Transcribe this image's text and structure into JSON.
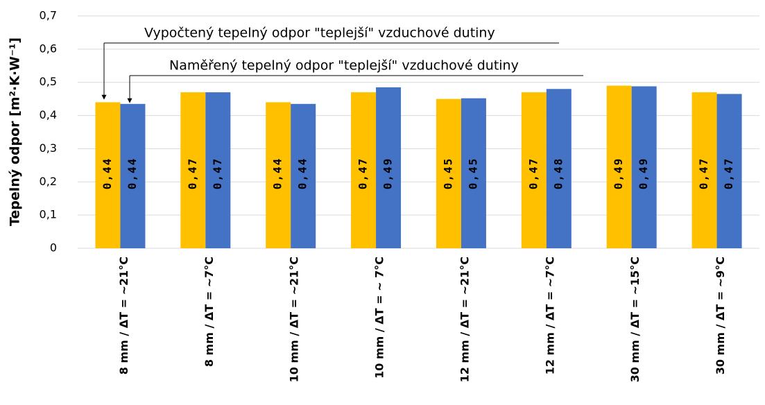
{
  "chart_data": {
    "type": "bar",
    "y_label": "Tepelný odpor [m²·K·W⁻¹]",
    "categories": [
      "8 mm / ΔT = ~21°C",
      "8 mm / ΔT = ~7°C",
      "10 mm / ΔT = ~21°C",
      "10 mm / ΔT = ~ 7°C",
      "12 mm / ΔT = ~21°C",
      "12 mm / ΔT = ~7°C",
      "30 mm / ΔT = ~15°C",
      "30 mm / ΔT = ~9°C"
    ],
    "series": [
      {
        "color": "#ffc000",
        "values": [
          0.44,
          0.47,
          0.44,
          0.47,
          0.45,
          0.47,
          0.49,
          0.47
        ],
        "value_labels": [
          "0,44",
          "0,47",
          "0,44",
          "0,47",
          "0,45",
          "0,47",
          "0,49",
          "0,47"
        ]
      },
      {
        "color": "#4472c4",
        "values": [
          0.435,
          0.47,
          0.435,
          0.485,
          0.452,
          0.48,
          0.488,
          0.465
        ],
        "value_labels": [
          "0,44",
          "0,47",
          "0,44",
          "0,49",
          "0,45",
          "0,48",
          "0,49",
          "0,47"
        ]
      }
    ],
    "annotations": [
      {
        "text": "Vypočtený tepelný odpor \"teplejší\" vzduchové dutiny"
      },
      {
        "text": "Naměřený tepelný odpor \"teplejší\" vzduchové dutiny"
      }
    ],
    "ylim": [
      0,
      0.7
    ],
    "yticks": [
      0,
      {
        "value": 0.1,
        "label": "0,1"
      },
      {
        "value": 0.2,
        "label": "0,2"
      },
      {
        "value": 0.3,
        "label": "0,3"
      },
      {
        "value": 0.4,
        "label": "0,4"
      },
      {
        "value": 0.5,
        "label": "0,5"
      },
      {
        "value": 0.6,
        "label": "0,6"
      },
      {
        "value": 0.7,
        "label": "0,7"
      }
    ],
    "grid": true
  }
}
